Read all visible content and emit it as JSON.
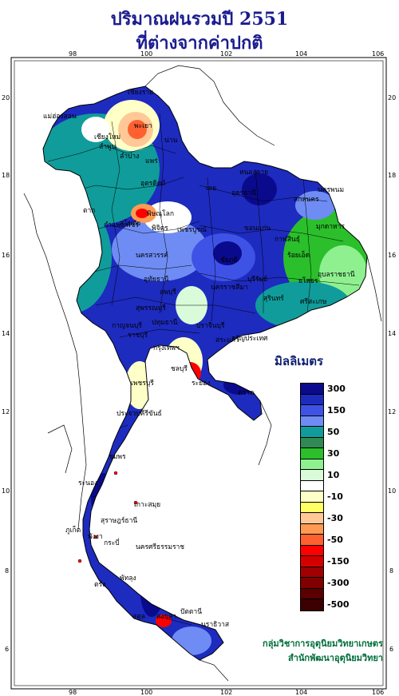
{
  "title": {
    "line1": "ปริมาณฝนรวมปี  2551",
    "line2": "ที่ต่างจากค่าปกติ"
  },
  "axes": {
    "x_ticks": [
      "98",
      "100",
      "102",
      "104",
      "106"
    ],
    "y_ticks": [
      "20",
      "18",
      "16",
      "14",
      "12",
      "10",
      "8",
      "6"
    ]
  },
  "places": [
    "เชียงราย",
    "แม่ฮ่องสอน",
    "พะเยา",
    "เชียงใหม่",
    "ลำพูน",
    "น่าน",
    "ลำปาง",
    "แพร่",
    "ตาก",
    "อุตรดิตถ์",
    "สุโขทัย",
    "พิษณุโลก",
    "หนองคาย",
    "อุดรธานี",
    "สกลนคร",
    "นครพนม",
    "เลย",
    "กำแพงเพชร",
    "พิจิตร",
    "ขอนแก่น",
    "มุกดาหาร",
    "กาฬสินธุ์",
    "เพชรบูรณ์",
    "นครสวรรค์",
    "ชัยภูมิ",
    "ร้อยเอ็ด",
    "อุบลราชธานี",
    "ยโสธร",
    "อุทัยธานี",
    "ลพบุรี",
    "นครราชสีมา",
    "สุรินทร์",
    "ศรีสะเกษ",
    "สุพรรณบุรี",
    "กาญจนบุรี",
    "ปทุมธานี",
    "ปราจีนบุรี",
    "ราชบุรี",
    "สระแก้ว",
    "อรัญประเทศ",
    "บุรีรัมย์",
    "กรุงเทพฯ",
    "ชลบุรี",
    "ระยอง",
    "เพชรบุรี",
    "ตราด",
    "ประจวบคีรีขันธ์",
    "ชุมพร",
    "ระนอง",
    "เกาะสมุย",
    "สุราษฎร์ธานี",
    "นครศรีธรรมราช",
    "ภูเก็ต",
    "กระบี่",
    "พังงา",
    "ตรัง",
    "พัทลุง",
    "สงขลา",
    "สตูล",
    "ปัตตานี",
    "นราธิวาส"
  ],
  "legend": {
    "title": "มิลลิเมตร",
    "classes": [
      {
        "label": "300",
        "color": "#0a0a8c"
      },
      {
        "label": "",
        "color": "#1d2bbf"
      },
      {
        "label": "150",
        "color": "#3f52e6"
      },
      {
        "label": "",
        "color": "#6e8cf3"
      },
      {
        "label": "50",
        "color": "#109c9a"
      },
      {
        "label": "",
        "color": "#2f8a55"
      },
      {
        "label": "30",
        "color": "#2bbf2b"
      },
      {
        "label": "",
        "color": "#8ff08f"
      },
      {
        "label": "10",
        "color": "#d9fbd9"
      },
      {
        "label": "",
        "color": "#ffffff"
      },
      {
        "label": "-10",
        "color": "#ffffc8"
      },
      {
        "label": "",
        "color": "#ffff66"
      },
      {
        "label": "-30",
        "color": "#ffc896"
      },
      {
        "label": "",
        "color": "#ff9a55"
      },
      {
        "label": "-50",
        "color": "#ff6030"
      },
      {
        "label": "",
        "color": "#ff0000"
      },
      {
        "label": "-150",
        "color": "#d40000"
      },
      {
        "label": "",
        "color": "#a00000"
      },
      {
        "label": "-300",
        "color": "#800000"
      },
      {
        "label": "",
        "color": "#5a0000"
      },
      {
        "label": "-500",
        "color": "#3c0000"
      }
    ]
  },
  "credit": {
    "line1": "กลุ่มวิชาการอุตุนิยมวิทยาเกษตร",
    "line2": "สำนักพัฒนาอุตุนิยมวิทยา"
  },
  "colors": {
    "title": "#1b1b8f",
    "credit": "#006d3a",
    "sea": "#ffffff"
  }
}
